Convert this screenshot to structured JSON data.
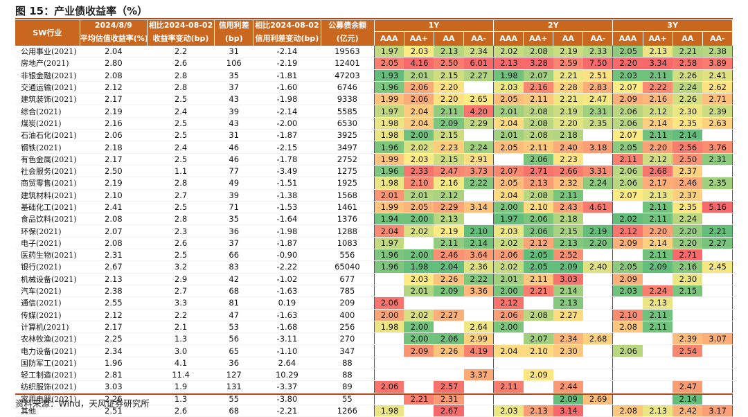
{
  "title": "图 15：产业债收益率（%）",
  "source": "资料来源：Wind，天风证券研究所",
  "header": {
    "sw": "SW行业",
    "c1a": "2024/8/9",
    "c1b": "平均估值收益率(%)",
    "c2a": "相比2024-08-02",
    "c2b": "收益率变动(bp)",
    "c3a": "信用利差",
    "c3b": "(bp)",
    "c4a": "相比2024-08-02",
    "c4b": "信用利差变动(bp)",
    "c5a": "公募债余额",
    "c5b": "(亿元)",
    "groups": [
      "1Y",
      "2Y",
      "3Y"
    ],
    "ratings": [
      "AAA",
      "AA+",
      "AA",
      "AA-"
    ]
  },
  "rows": [
    {
      "name": "公用事业(2021)",
      "yield": "2.04",
      "chg": "2.2",
      "spread": "31",
      "spchg": "-2.14",
      "bal": "19563",
      "y1": [
        "1.97",
        "2.03",
        "2.13",
        "2.34"
      ],
      "y2": [
        "2.02",
        "2.08",
        "2.19",
        "2.33"
      ],
      "y3": [
        "2.05",
        "2.13",
        "2.21",
        "2.38"
      ]
    },
    {
      "name": "房地产(2021)",
      "yield": "2.80",
      "chg": "2.6",
      "spread": "106",
      "spchg": "-2.19",
      "bal": "12401",
      "y1": [
        "2.05",
        "4.16",
        "2.50",
        "6.01"
      ],
      "y2": [
        "2.13",
        "3.28",
        "2.59",
        "7.50"
      ],
      "y3": [
        "2.20",
        "3.34",
        "2.58",
        "3.89"
      ]
    },
    {
      "name": "非银金融(2021)",
      "yield": "2.08",
      "chg": "2.8",
      "spread": "35",
      "spchg": "-1.81",
      "bal": "47203",
      "y1": [
        "1.93",
        "2.01",
        "2.15",
        "2.27"
      ],
      "y2": [
        "1.98",
        "2.07",
        "2.21",
        "2.51"
      ],
      "y3": [
        "2.03",
        "2.11",
        "2.26",
        "2.41"
      ]
    },
    {
      "name": "交通运输(2021)",
      "yield": "2.12",
      "chg": "2.8",
      "spread": "37",
      "spchg": "-1.60",
      "bal": "6746",
      "y1": [
        "1.96",
        "2.06",
        "2.20",
        ""
      ],
      "y2": [
        "2.03",
        "2.16",
        "2.28",
        "2.83"
      ],
      "y3": [
        "2.07",
        "2.22",
        "2.24",
        "2.62"
      ]
    },
    {
      "name": "建筑装饰(2021)",
      "yield": "2.17",
      "chg": "2.5",
      "spread": "43",
      "spchg": "-1.98",
      "bal": "9338",
      "y1": [
        "1.99",
        "2.06",
        "2.20",
        "2.65"
      ],
      "y2": [
        "2.05",
        "2.11",
        "2.21",
        "2.47"
      ],
      "y3": [
        "2.09",
        "2.16",
        "2.26",
        "2.71"
      ]
    },
    {
      "name": "综合(2021)",
      "yield": "2.19",
      "chg": "2.4",
      "spread": "39",
      "spchg": "-2.14",
      "bal": "5585",
      "y1": [
        "1.97",
        "2.04",
        "2.11",
        "4.20"
      ],
      "y2": [
        "2.01",
        "2.08",
        "2.19",
        "2.31"
      ],
      "y3": [
        "2.06",
        "2.12",
        "2.30",
        "2.39"
      ]
    },
    {
      "name": "煤炭(2021)",
      "yield": "2.16",
      "chg": "2.5",
      "spread": "43",
      "spchg": "-2.00",
      "bal": "6530",
      "y1": [
        "1.98",
        "2.04",
        "2.09",
        "2.29"
      ],
      "y2": [
        "2.04",
        "2.08",
        "2.20",
        "2.35"
      ],
      "y3": [
        "2.06",
        "2.14",
        "2.35",
        "2.63"
      ]
    },
    {
      "name": "石油石化(2021)",
      "yield": "2.06",
      "chg": "2.5",
      "spread": "31",
      "spchg": "-1.87",
      "bal": "3925",
      "y1": [
        "1.98",
        "2.00",
        "2.15",
        ""
      ],
      "y2": [
        "2.01",
        "2.08",
        "2.18",
        ""
      ],
      "y3": [
        "2.07",
        "2.11",
        "2.14",
        ""
      ]
    },
    {
      "name": "钢铁(2021)",
      "yield": "2.18",
      "chg": "2.4",
      "spread": "46",
      "spchg": "-2.15",
      "bal": "3497",
      "y1": [
        "1.96",
        "2.02",
        "2.23",
        "2.24"
      ],
      "y2": [
        "2.05",
        "2.11",
        "2.40",
        "3.18"
      ],
      "y3": [
        "2.05",
        "2.20",
        "2.56",
        "3.76"
      ]
    },
    {
      "name": "有色金属(2021)",
      "yield": "2.17",
      "chg": "2.5",
      "spread": "46",
      "spchg": "-1.78",
      "bal": "2752",
      "y1": [
        "1.99",
        "2.03",
        "2.15",
        "2.91"
      ],
      "y2": [
        "",
        "2.06",
        "2.23",
        ""
      ],
      "y3": [
        "2.11",
        "2.12",
        "2.50",
        "2.31"
      ]
    },
    {
      "name": "社会服务(2021)",
      "yield": "2.50",
      "chg": "1.1",
      "spread": "77",
      "spchg": "-3.49",
      "bal": "1275",
      "y1": [
        "1.96",
        "2.33",
        "2.47",
        "3.73"
      ],
      "y2": [
        "2.07",
        "2.71",
        "2.66",
        "3.31"
      ],
      "y3": [
        "2.06",
        "2.68",
        "2.37",
        ""
      ]
    },
    {
      "name": "商贸零售(2021)",
      "yield": "2.19",
      "chg": "2.8",
      "spread": "49",
      "spchg": "-1.51",
      "bal": "1925",
      "y1": [
        "1.98",
        "2.10",
        "2.16",
        "2.22"
      ],
      "y2": [
        "2.05",
        "2.13",
        "2.32",
        "2.24"
      ],
      "y3": [
        "2.06",
        "2.17",
        "2.46",
        "2.35"
      ]
    },
    {
      "name": "建筑材料(2021)",
      "yield": "2.10",
      "chg": "2.7",
      "spread": "39",
      "spchg": "-1.38",
      "bal": "1568",
      "y1": [
        "2.01",
        "2.01",
        "2.12",
        ""
      ],
      "y2": [
        "2.04",
        "2.08",
        "2.11",
        ""
      ],
      "y3": [
        "2.07",
        "2.13",
        "2.37",
        ""
      ]
    },
    {
      "name": "基础化工(2021)",
      "yield": "2.41",
      "chg": "2.5",
      "spread": "71",
      "spchg": "-1.53",
      "bal": "1461",
      "y1": [
        "1.99",
        "2.05",
        "2.29",
        "3.14"
      ],
      "y2": [
        "2.00",
        "2.10",
        "2.43",
        "4.61"
      ],
      "y3": [
        "",
        "2.11",
        "2.35",
        "5.16"
      ]
    },
    {
      "name": "食品饮料(2021)",
      "yield": "2.08",
      "chg": "2.8",
      "spread": "35",
      "spchg": "-1.64",
      "bal": "1376",
      "y1": [
        "1.94",
        "2.00",
        "2.13",
        ""
      ],
      "y2": [
        "1.97",
        "2.06",
        "2.18",
        ""
      ],
      "y3": [
        "2.02",
        "2.11",
        "2.24",
        ""
      ]
    },
    {
      "name": "环保(2021)",
      "yield": "2.07",
      "chg": "2.3",
      "spread": "36",
      "spchg": "-1.98",
      "bal": "1288",
      "y1": [
        "2.04",
        "2.02",
        "2.19",
        "2.10"
      ],
      "y2": [
        "2.03",
        "2.06",
        "2.15",
        "2.19"
      ],
      "y3": [
        "2.12",
        "2.20",
        "2.20",
        "2.21"
      ]
    },
    {
      "name": "电子(2021)",
      "yield": "2.08",
      "chg": "2.6",
      "spread": "37",
      "spchg": "-1.87",
      "bal": "1083",
      "y1": [
        "1.97",
        "",
        "2.11",
        "2.14"
      ],
      "y2": [
        "2.02",
        "2.12",
        "2.13",
        "2.20"
      ],
      "y3": [
        "2.09",
        "2.14",
        "2.20",
        "2.27"
      ]
    },
    {
      "name": "医药生物(2021)",
      "yield": "2.31",
      "chg": "2.5",
      "spread": "66",
      "spchg": "-0.90",
      "bal": "556",
      "y1": [
        "1.96",
        "2.00",
        "2.46",
        "3.64"
      ],
      "y2": [
        "2.06",
        "2.05",
        "2.52",
        ""
      ],
      "y3": [
        "",
        "2.11",
        "2.71",
        ""
      ]
    },
    {
      "name": "银行(2021)",
      "yield": "2.67",
      "chg": "3.2",
      "spread": "83",
      "spchg": "-2.22",
      "bal": "65040",
      "y1": [
        "1.96",
        "1.98",
        "2.04",
        "2.36"
      ],
      "y2": [
        "2.02",
        "2.05",
        "2.09",
        "2.40"
      ],
      "y3": [
        "2.05",
        "2.09",
        "2.16",
        "2.45"
      ]
    },
    {
      "name": "机械设备(2021)",
      "yield": "2.13",
      "chg": "2.9",
      "spread": "42",
      "spchg": "-1.02",
      "bal": "677",
      "y1": [
        "",
        "2.03",
        "2.26",
        "2.22"
      ],
      "y2": [
        "2.01",
        "2.11",
        "3.03",
        ""
      ],
      "y3": [
        "2.09",
        "",
        "2.30",
        ""
      ]
    },
    {
      "name": "汽车(2021)",
      "yield": "2.38",
      "chg": "2.7",
      "spread": "68",
      "spchg": "-1.63",
      "bal": "785",
      "y1": [
        "",
        "2.01",
        "2.09",
        "3.36"
      ],
      "y2": [
        "2.00",
        "2.21",
        "2.14",
        ""
      ],
      "y3": [
        "2.03",
        "2.24",
        "2.15",
        ""
      ]
    },
    {
      "name": "通信(2021)",
      "yield": "2.55",
      "chg": "3.3",
      "spread": "81",
      "spchg": "0.19",
      "bal": "209",
      "y1": [
        "2.06",
        "",
        "",
        ""
      ],
      "y2": [
        "2.12",
        "",
        "2.13",
        ""
      ],
      "y3": [
        "",
        "2.13",
        "",
        ""
      ]
    },
    {
      "name": "传媒(2021)",
      "yield": "2.12",
      "chg": "2.2",
      "spread": "47",
      "spchg": "-1.63",
      "bal": "400",
      "y1": [
        "2.00",
        "2.02",
        "2.27",
        ""
      ],
      "y2": [
        "2.06",
        "2.08",
        "2.27",
        ""
      ],
      "y3": [
        "2.10",
        "2.11",
        "",
        ""
      ]
    },
    {
      "name": "计算机(2021)",
      "yield": "2.17",
      "chg": "2.1",
      "spread": "53",
      "spchg": "-1.68",
      "bal": "256",
      "y1": [
        "1.98",
        "2.00",
        "",
        "2.64"
      ],
      "y2": [
        "2.00",
        "",
        "",
        ""
      ],
      "y3": [
        "2.08",
        "2.11",
        "",
        ""
      ]
    },
    {
      "name": "农林牧渔(2021)",
      "yield": "2.25",
      "chg": "1.3",
      "spread": "56",
      "spchg": "-3.11",
      "bal": "270",
      "y1": [
        "",
        "2.00",
        "2.06",
        "2.99"
      ],
      "y2": [
        "",
        "2.07",
        "2.34",
        "2.68"
      ],
      "y3": [
        "",
        "",
        "2.39",
        "3.07"
      ]
    },
    {
      "name": "电力设备(2021)",
      "yield": "2.34",
      "chg": "3.0",
      "spread": "65",
      "spchg": "-1.10",
      "bal": "347",
      "y1": [
        "",
        "2.09",
        "2.26",
        "4.19"
      ],
      "y2": [
        "2.04",
        "2.10",
        "2.30",
        ""
      ],
      "y3": [
        "2.06",
        "",
        "2.54",
        ""
      ]
    },
    {
      "name": "国防军工(2021)",
      "yield": "1.96",
      "chg": "4.1",
      "spread": "36",
      "spchg": "2.64",
      "bal": "88",
      "y1": [
        "",
        "",
        "",
        ""
      ],
      "y2": [
        "",
        "",
        "",
        ""
      ],
      "y3": [
        "",
        "",
        "",
        ""
      ]
    },
    {
      "name": "轻工制造(2021)",
      "yield": "2.81",
      "chg": "11.4",
      "spread": "127",
      "spchg": "10.29",
      "bal": "88",
      "y1": [
        "",
        "",
        "",
        "3.37"
      ],
      "y2": [
        "",
        "2.09",
        "",
        ""
      ],
      "y3": [
        "",
        "",
        "",
        ""
      ]
    },
    {
      "name": "纺织服饰(2021)",
      "yield": "3.03",
      "chg": "1.9",
      "spread": "131",
      "spchg": "-3.37",
      "bal": "89",
      "y1": [
        "2.06",
        "",
        "2.57",
        ""
      ],
      "y2": [
        "2.11",
        "",
        "2.44",
        ""
      ],
      "y3": [
        "",
        "",
        "2.47",
        ""
      ]
    },
    {
      "name": "家用电器(2021)",
      "yield": "2.26",
      "chg": "1.3",
      "spread": "55",
      "spchg": "-3.80",
      "bal": "55",
      "y1": [
        "",
        "2.21",
        "2.31",
        ""
      ],
      "y2": [
        "",
        "",
        "2.09",
        "2.69"
      ],
      "y3": [
        "",
        "",
        "2.14",
        ""
      ]
    },
    {
      "name": "其他",
      "yield": "2.51",
      "chg": "2.6",
      "spread": "68",
      "spchg": "-2.21",
      "bal": "1266",
      "y1": [
        "1.98",
        "",
        "2.67",
        ""
      ],
      "y2": [
        "2.03",
        "2.13",
        "3.14",
        ""
      ],
      "y3": [
        "2.08",
        "2.13",
        "2.42",
        "3.17"
      ]
    }
  ]
}
